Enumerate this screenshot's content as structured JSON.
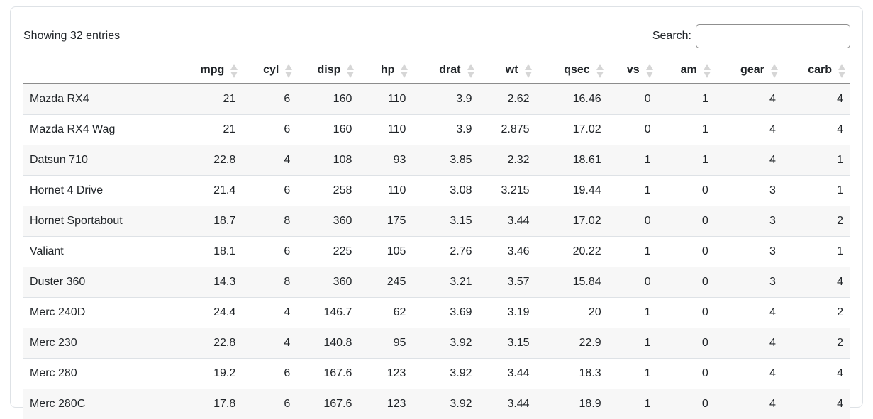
{
  "card": {
    "info_text": "Showing 32 entries"
  },
  "search": {
    "label": "Search:",
    "value": ""
  },
  "table": {
    "columns": [
      {
        "label": "",
        "sortable": false
      },
      {
        "label": "mpg",
        "sortable": true
      },
      {
        "label": "cyl",
        "sortable": true
      },
      {
        "label": "disp",
        "sortable": true
      },
      {
        "label": "hp",
        "sortable": true
      },
      {
        "label": "drat",
        "sortable": true
      },
      {
        "label": "wt",
        "sortable": true
      },
      {
        "label": "qsec",
        "sortable": true
      },
      {
        "label": "vs",
        "sortable": true
      },
      {
        "label": "am",
        "sortable": true
      },
      {
        "label": "gear",
        "sortable": true
      },
      {
        "label": "carb",
        "sortable": true
      }
    ],
    "rows": [
      {
        "name": "Mazda RX4",
        "values": [
          "21",
          "6",
          "160",
          "110",
          "3.9",
          "2.62",
          "16.46",
          "0",
          "1",
          "4",
          "4"
        ]
      },
      {
        "name": "Mazda RX4 Wag",
        "values": [
          "21",
          "6",
          "160",
          "110",
          "3.9",
          "2.875",
          "17.02",
          "0",
          "1",
          "4",
          "4"
        ]
      },
      {
        "name": "Datsun 710",
        "values": [
          "22.8",
          "4",
          "108",
          "93",
          "3.85",
          "2.32",
          "18.61",
          "1",
          "1",
          "4",
          "1"
        ]
      },
      {
        "name": "Hornet 4 Drive",
        "values": [
          "21.4",
          "6",
          "258",
          "110",
          "3.08",
          "3.215",
          "19.44",
          "1",
          "0",
          "3",
          "1"
        ]
      },
      {
        "name": "Hornet Sportabout",
        "values": [
          "18.7",
          "8",
          "360",
          "175",
          "3.15",
          "3.44",
          "17.02",
          "0",
          "0",
          "3",
          "2"
        ]
      },
      {
        "name": "Valiant",
        "values": [
          "18.1",
          "6",
          "225",
          "105",
          "2.76",
          "3.46",
          "20.22",
          "1",
          "0",
          "3",
          "1"
        ]
      },
      {
        "name": "Duster 360",
        "values": [
          "14.3",
          "8",
          "360",
          "245",
          "3.21",
          "3.57",
          "15.84",
          "0",
          "0",
          "3",
          "4"
        ]
      },
      {
        "name": "Merc 240D",
        "values": [
          "24.4",
          "4",
          "146.7",
          "62",
          "3.69",
          "3.19",
          "20",
          "1",
          "0",
          "4",
          "2"
        ]
      },
      {
        "name": "Merc 230",
        "values": [
          "22.8",
          "4",
          "140.8",
          "95",
          "3.92",
          "3.15",
          "22.9",
          "1",
          "0",
          "4",
          "2"
        ]
      },
      {
        "name": "Merc 280",
        "values": [
          "19.2",
          "6",
          "167.6",
          "123",
          "3.92",
          "3.44",
          "18.3",
          "1",
          "0",
          "4",
          "4"
        ]
      },
      {
        "name": "Merc 280C",
        "values": [
          "17.8",
          "6",
          "167.6",
          "123",
          "3.92",
          "3.44",
          "18.9",
          "1",
          "0",
          "4",
          "4"
        ]
      }
    ]
  },
  "colors": {
    "text": "#212529",
    "stripe": "#f7f7f7",
    "row_border": "#dee2e6",
    "header_border": "#8c8c8c",
    "sort_icon": "#d6d6d6",
    "card_border": "#dee2e6",
    "input_border": "#8f8f8f"
  }
}
